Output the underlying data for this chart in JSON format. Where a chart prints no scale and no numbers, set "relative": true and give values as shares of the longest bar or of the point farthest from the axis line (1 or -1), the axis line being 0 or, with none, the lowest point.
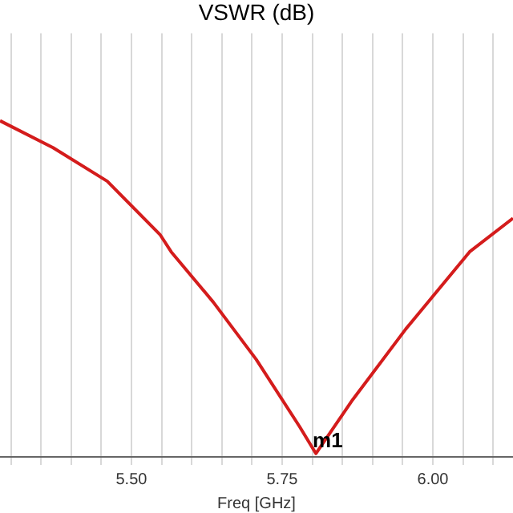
{
  "chart_data": {
    "type": "line",
    "title": "VSWR (dB)",
    "xlabel": "Freq [GHz]",
    "relative": true,
    "x": [
      5.282,
      5.37,
      5.46,
      5.548,
      5.566,
      5.636,
      5.707,
      5.779,
      5.806,
      5.867,
      5.955,
      6.061,
      6.133
    ],
    "series": [
      {
        "color": "#d41c1c",
        "values": [
          1,
          0.92,
          0.82,
          0.66,
          0.61,
          0.46,
          0.29,
          0.09,
          0.01,
          0.17,
          0.38,
          0.61,
          0.71
        ]
      }
    ],
    "xlim": [
      5.282,
      6.133
    ],
    "xticks": [
      {
        "value": 5.3,
        "label": null
      },
      {
        "value": 5.35,
        "label": null
      },
      {
        "value": 5.4,
        "label": null
      },
      {
        "value": 5.45,
        "label": null
      },
      {
        "value": 5.5,
        "label": "5.50"
      },
      {
        "value": 5.55,
        "label": null
      },
      {
        "value": 5.6,
        "label": null
      },
      {
        "value": 5.65,
        "label": null
      },
      {
        "value": 5.7,
        "label": null
      },
      {
        "value": 5.75,
        "label": "5.75"
      },
      {
        "value": 5.8,
        "label": null
      },
      {
        "value": 5.85,
        "label": null
      },
      {
        "value": 5.9,
        "label": null
      },
      {
        "value": 5.95,
        "label": null
      },
      {
        "value": 6.0,
        "label": "6.00"
      },
      {
        "value": 6.05,
        "label": null
      },
      {
        "value": 6.1,
        "label": null
      }
    ],
    "grid": "x",
    "legend": false,
    "annotations": [
      {
        "text": "m1",
        "x": 5.806,
        "y": 0.01
      }
    ]
  }
}
